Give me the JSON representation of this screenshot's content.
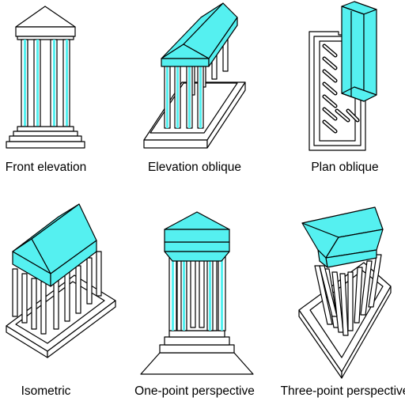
{
  "colors": {
    "accent": "#55f0f0",
    "outline": "#000000",
    "background": "#ffffff"
  },
  "views": [
    {
      "id": "front-elevation",
      "label": "Front elevation"
    },
    {
      "id": "elevation-oblique",
      "label": "Elevation oblique"
    },
    {
      "id": "plan-oblique",
      "label": "Plan oblique"
    },
    {
      "id": "isometric",
      "label": "Isometric"
    },
    {
      "id": "one-point-perspective",
      "label": "One-point perspective"
    },
    {
      "id": "three-point-perspective",
      "label": "Three-point perspective"
    }
  ]
}
